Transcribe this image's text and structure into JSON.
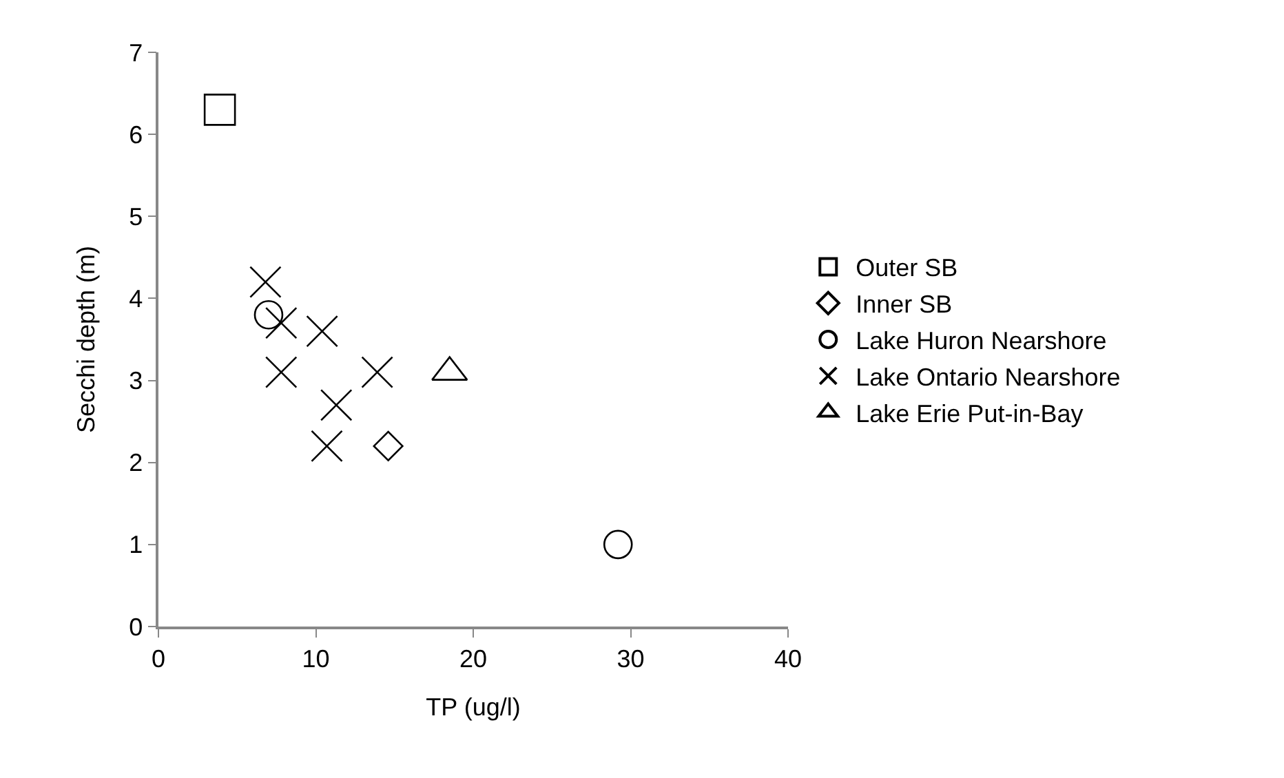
{
  "chart_data": {
    "type": "scatter",
    "xlabel": "TP (ug/l)",
    "ylabel": "Secchi depth (m)",
    "xlim": [
      0,
      40
    ],
    "xticks": [
      0,
      10,
      20,
      30,
      40
    ],
    "ylim": [
      0,
      7
    ],
    "yticks": [
      0,
      1,
      2,
      3,
      4,
      5,
      6,
      7
    ],
    "grid": false,
    "legend": "right",
    "series": [
      {
        "name": "Outer SB",
        "color": "#000000",
        "marker": "square",
        "x": [
          3.9
        ],
        "values": [
          6.3
        ]
      },
      {
        "name": "Inner SB",
        "color": "#000000",
        "marker": "diamond",
        "x": [
          14.6
        ],
        "values": [
          2.2
        ]
      },
      {
        "name": "Lake Huron Nearshore",
        "color": "#000000",
        "marker": "circle",
        "x": [
          7.0,
          29.2
        ],
        "values": [
          3.8,
          1.0
        ]
      },
      {
        "name": "Lake Ontario Nearshore",
        "color": "#000000",
        "marker": "cross",
        "x": [
          6.8,
          7.8,
          10.4,
          7.8,
          13.9,
          11.3,
          10.7
        ],
        "values": [
          4.2,
          3.7,
          3.6,
          3.1,
          3.1,
          2.7,
          2.2
        ]
      },
      {
        "name": "Lake Erie Put-in-Bay",
        "color": "#000000",
        "marker": "triangle",
        "x": [
          18.5
        ],
        "values": [
          3.1
        ]
      }
    ]
  }
}
